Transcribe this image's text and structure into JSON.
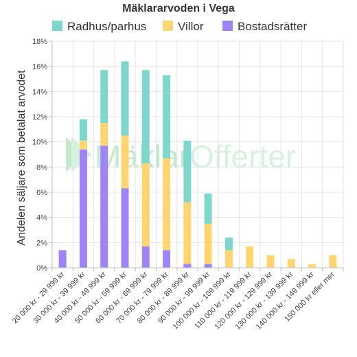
{
  "colors": {
    "radhus": "#7dd7cd",
    "villor": "#ffd571",
    "bostad": "#9f84f5",
    "grid": "#e4e4e4",
    "axis": "#bdbdbd",
    "watermark_a": "#8fd9a0",
    "watermark_b": "#b7e9c0"
  },
  "watermark": {
    "part1": "Mäklar",
    "part2": "Offerter"
  },
  "chart_data": {
    "type": "bar",
    "stacked": true,
    "title": "Mäklararvoden i Vega",
    "xlabel": "",
    "ylabel": "Andelen säljare som betalat arvodet",
    "ylim": [
      0,
      18
    ],
    "yticks": [
      "0%",
      "2%",
      "4%",
      "6%",
      "8%",
      "10%",
      "12%",
      "14%",
      "16%",
      "18%"
    ],
    "grid": true,
    "legend_position": "top",
    "categories": [
      "20 000 kr - 29 999 kr",
      "30 000 kr - 39 999 kr",
      "40 000 kr - 49 999 kr",
      "50 000 kr - 59 999 kr",
      "60 000 kr - 69 999 kr",
      "70 000 kr - 79 999 kr",
      "80 000 kr - 89 999 kr",
      "90 000 kr - 99 999 kr",
      "100 000 kr - 109 999 kr",
      "110 000 kr - 119 999 kr",
      "120 000 kr - 129 999 kr",
      "130 000 kr - 139 999 kr",
      "140 000 kr - 149 999 kr",
      "150 000 kr eller mer"
    ],
    "series": [
      {
        "name": "Bostadsrätter",
        "color_key": "bostad",
        "values": [
          1.4,
          9.4,
          9.7,
          6.3,
          1.7,
          1.4,
          0.3,
          0.3,
          0,
          0,
          0,
          0,
          0,
          0
        ]
      },
      {
        "name": "Villor",
        "color_key": "villor",
        "values": [
          0,
          0.7,
          1.8,
          4.2,
          6.6,
          7.3,
          4.9,
          3.2,
          1.4,
          1.7,
          1.0,
          0.7,
          0.3,
          1.0
        ]
      },
      {
        "name": "Radhus/parhus",
        "color_key": "radhus",
        "values": [
          0,
          1.7,
          4.2,
          5.9,
          7.4,
          6.6,
          4.9,
          2.4,
          1.0,
          0,
          0,
          0,
          0,
          0
        ]
      }
    ],
    "legend": [
      "Radhus/parhus",
      "Villor",
      "Bostadsrätter"
    ]
  }
}
